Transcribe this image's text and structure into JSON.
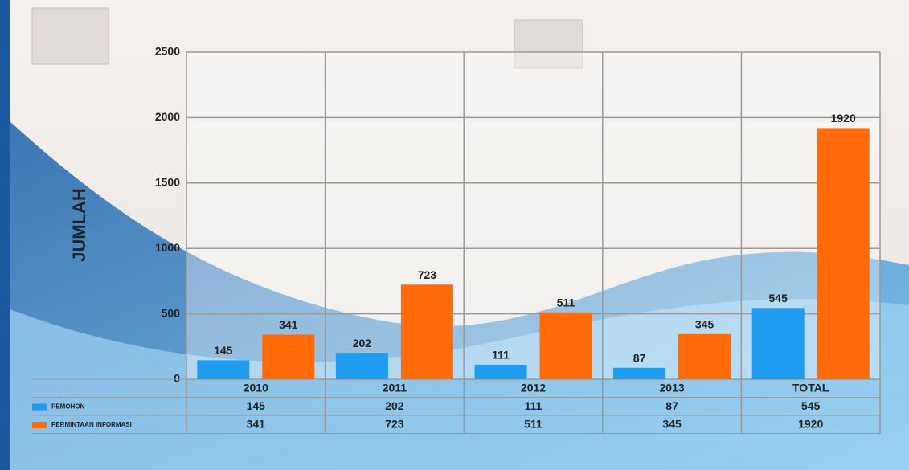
{
  "chart_data": {
    "type": "bar",
    "y_label": "JUMLAH",
    "categories": [
      "2010",
      "2011",
      "2012",
      "2013",
      "TOTAL"
    ],
    "series": [
      {
        "name": "PEMOHON",
        "color": "#1e9cf0",
        "values": [
          145,
          202,
          111,
          87,
          545
        ]
      },
      {
        "name": "PERMINTAAN INFORMASI",
        "color": "#ff6a0a",
        "values": [
          341,
          723,
          511,
          345,
          1920
        ]
      }
    ],
    "ylim": [
      0,
      2500
    ],
    "yticks": [
      0,
      500,
      1000,
      1500,
      2000,
      2500
    ],
    "grid": true,
    "data_table": true
  }
}
